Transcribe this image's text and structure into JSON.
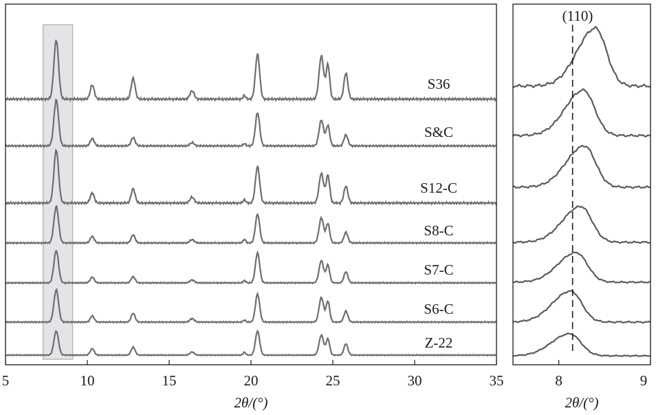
{
  "chart_data": [
    {
      "type": "line",
      "panel": "main",
      "xlabel": "2θ/(°)",
      "xlim": [
        5,
        35
      ],
      "xticks": [
        5,
        10,
        15,
        20,
        25,
        30,
        35
      ],
      "highlight_region": [
        7.3,
        9.1
      ],
      "peaks": [
        8.1,
        10.3,
        12.8,
        16.4,
        19.6,
        20.4,
        24.3,
        24.7,
        25.8
      ],
      "series": [
        {
          "name": "S36",
          "peak_heights": [
            1.0,
            0.24,
            0.35,
            0.14,
            0.06,
            0.76,
            0.73,
            0.58,
            0.44
          ]
        },
        {
          "name": "S&C",
          "peak_heights": [
            1.0,
            0.16,
            0.18,
            0.07,
            0.05,
            0.72,
            0.56,
            0.44,
            0.24
          ]
        },
        {
          "name": "S12-C",
          "peak_heights": [
            1.0,
            0.19,
            0.27,
            0.11,
            0.06,
            0.69,
            0.56,
            0.52,
            0.32
          ]
        },
        {
          "name": "S8-C",
          "peak_heights": [
            1.0,
            0.18,
            0.22,
            0.09,
            0.1,
            0.79,
            0.69,
            0.53,
            0.29
          ]
        },
        {
          "name": "S7-C",
          "peak_heights": [
            1.0,
            0.18,
            0.19,
            0.09,
            0.07,
            0.93,
            0.69,
            0.55,
            0.34
          ]
        },
        {
          "name": "S6-C",
          "peak_heights": [
            1.0,
            0.19,
            0.27,
            0.11,
            0.06,
            0.87,
            0.76,
            0.64,
            0.34
          ]
        },
        {
          "name": "Z-22",
          "peak_heights": [
            1.0,
            0.27,
            0.33,
            0.13,
            0.12,
            1.0,
            0.83,
            0.67,
            0.47
          ]
        }
      ]
    },
    {
      "type": "line",
      "panel": "inset",
      "title": "(110)",
      "xlabel": "2θ/(°)",
      "xlim": [
        7.5,
        9
      ],
      "xticks": [
        8,
        9
      ],
      "reference_line": 8.15,
      "series": [
        {
          "name": "S36",
          "peak_center": 8.4
        },
        {
          "name": "S&C",
          "peak_center": 8.27
        },
        {
          "name": "S12-C",
          "peak_center": 8.28
        },
        {
          "name": "S8-C",
          "peak_center": 8.24
        },
        {
          "name": "S7-C",
          "peak_center": 8.19
        },
        {
          "name": "S6-C",
          "peak_center": 8.13
        },
        {
          "name": "Z-22",
          "peak_center": 8.12
        }
      ]
    }
  ]
}
